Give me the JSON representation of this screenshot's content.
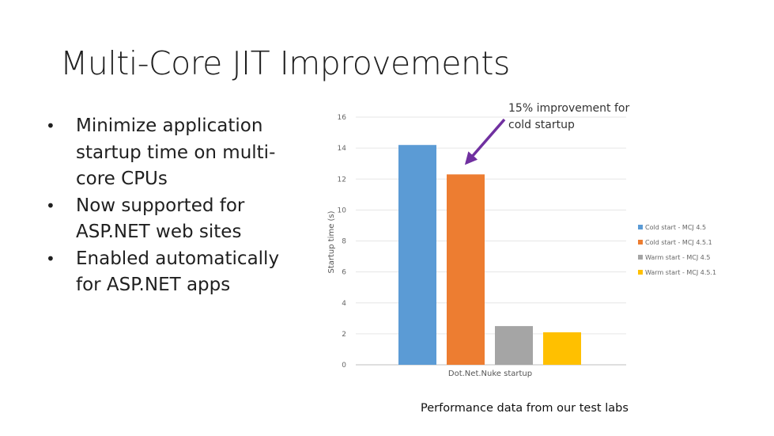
{
  "slide": {
    "title": "Multi-Core JIT Improvements",
    "bullets": [
      "Minimize application startup time on multi-core CPUs",
      "Now supported for ASP.NET web sites",
      "Enabled automatically for ASP.NET apps"
    ],
    "annotation": "15% improvement for cold startup",
    "footnote": "Performance data from our test labs"
  },
  "colors": {
    "accent_arrow": "#7030a0",
    "series": [
      "#5b9bd5",
      "#ed7d31",
      "#a5a5a5",
      "#ffc000"
    ]
  },
  "chart_data": {
    "type": "bar",
    "categories": [
      "Dot.Net.Nuke startup"
    ],
    "series": [
      {
        "name": "Cold start - MCJ 4.5",
        "values": [
          14.2
        ]
      },
      {
        "name": "Cold start - MCJ 4.5.1",
        "values": [
          12.3
        ]
      },
      {
        "name": "Warm start - MCJ 4.5",
        "values": [
          2.5
        ]
      },
      {
        "name": "Warm start - MCJ 4.5.1",
        "values": [
          2.1
        ]
      }
    ],
    "title": "",
    "xlabel": "",
    "ylabel": "Startup time (s)",
    "ylim": [
      0,
      16
    ],
    "yticks": [
      "0",
      "2",
      "4",
      "6",
      "8",
      "10",
      "12",
      "14",
      "16"
    ],
    "grid": true,
    "legend": "right"
  }
}
